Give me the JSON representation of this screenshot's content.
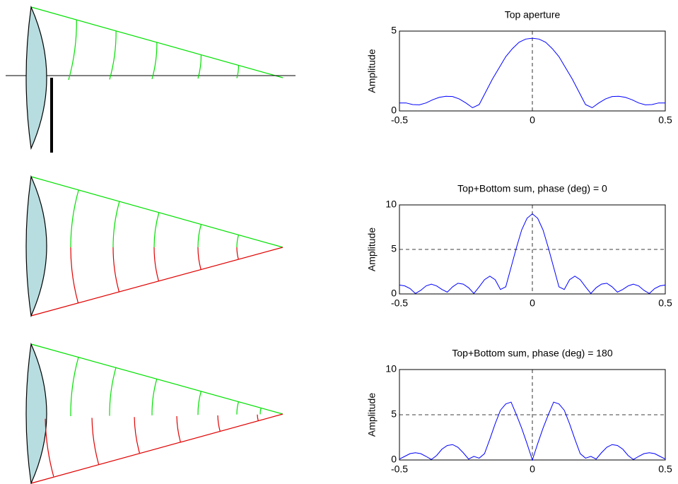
{
  "chart_data": [
    {
      "type": "line",
      "title": "Top aperture",
      "ylabel": "Amplitude",
      "color": "#0000ff",
      "x": [
        -0.5,
        -0.475,
        -0.45,
        -0.425,
        -0.4,
        -0.375,
        -0.35,
        -0.325,
        -0.3,
        -0.275,
        -0.25,
        -0.225,
        -0.2,
        -0.175,
        -0.15,
        -0.125,
        -0.1,
        -0.075,
        -0.05,
        -0.025,
        0,
        0.025,
        0.05,
        0.075,
        0.1,
        0.125,
        0.15,
        0.175,
        0.2,
        0.225,
        0.25,
        0.275,
        0.3,
        0.325,
        0.35,
        0.375,
        0.4,
        0.425,
        0.45,
        0.475,
        0.5
      ],
      "values": [
        0.5,
        0.5,
        0.4,
        0.38,
        0.5,
        0.7,
        0.85,
        0.92,
        0.9,
        0.75,
        0.5,
        0.2,
        0.4,
        1.2,
        2.0,
        2.7,
        3.4,
        3.9,
        4.3,
        4.5,
        4.55,
        4.5,
        4.3,
        3.9,
        3.4,
        2.7,
        2.0,
        1.2,
        0.4,
        0.2,
        0.5,
        0.75,
        0.9,
        0.92,
        0.85,
        0.7,
        0.5,
        0.38,
        0.4,
        0.5,
        0.5
      ],
      "xlim": [
        -0.5,
        0.5
      ],
      "xticks": [
        -0.5,
        0,
        0.5
      ],
      "ylim": [
        0,
        5
      ],
      "yticks": [
        0,
        5
      ],
      "grid": "dashed"
    },
    {
      "type": "line",
      "title": "Top+Bottom sum, phase (deg) = 0",
      "ylabel": "Amplitude",
      "color": "#0000ff",
      "x": [
        -0.5,
        -0.48,
        -0.46,
        -0.44,
        -0.42,
        -0.4,
        -0.38,
        -0.36,
        -0.34,
        -0.32,
        -0.3,
        -0.28,
        -0.26,
        -0.24,
        -0.22,
        -0.2,
        -0.18,
        -0.16,
        -0.14,
        -0.12,
        -0.1,
        -0.08,
        -0.06,
        -0.04,
        -0.02,
        0,
        0.02,
        0.04,
        0.06,
        0.08,
        0.1,
        0.12,
        0.14,
        0.16,
        0.18,
        0.2,
        0.22,
        0.24,
        0.26,
        0.28,
        0.3,
        0.32,
        0.34,
        0.36,
        0.38,
        0.4,
        0.42,
        0.44,
        0.46,
        0.48,
        0.5
      ],
      "values": [
        1.0,
        0.9,
        0.6,
        0.05,
        0.4,
        0.9,
        1.1,
        0.9,
        0.5,
        0.2,
        0.8,
        1.2,
        1.1,
        0.7,
        0.05,
        0.8,
        1.6,
        2.0,
        1.6,
        0.5,
        0.8,
        3.0,
        5.2,
        7.2,
        8.5,
        9,
        8.5,
        7.2,
        5.2,
        3.0,
        0.8,
        0.5,
        1.6,
        2.0,
        1.6,
        0.8,
        0.05,
        0.7,
        1.1,
        1.2,
        0.8,
        0.2,
        0.5,
        0.9,
        1.1,
        0.9,
        0.4,
        0.05,
        0.6,
        0.9,
        1.0
      ],
      "xlim": [
        -0.5,
        0.5
      ],
      "xticks": [
        -0.5,
        0,
        0.5
      ],
      "ylim": [
        0,
        10
      ],
      "yticks": [
        0,
        5,
        10
      ],
      "grid": "dashed"
    },
    {
      "type": "line",
      "title": "Top+Bottom sum, phase (deg) = 180",
      "ylabel": "Amplitude",
      "color": "#0000ff",
      "x": [
        -0.5,
        -0.48,
        -0.46,
        -0.44,
        -0.42,
        -0.4,
        -0.38,
        -0.36,
        -0.34,
        -0.32,
        -0.3,
        -0.28,
        -0.26,
        -0.24,
        -0.22,
        -0.2,
        -0.18,
        -0.16,
        -0.14,
        -0.12,
        -0.1,
        -0.08,
        -0.06,
        -0.04,
        -0.02,
        0,
        0.02,
        0.04,
        0.06,
        0.08,
        0.1,
        0.12,
        0.14,
        0.16,
        0.18,
        0.2,
        0.22,
        0.24,
        0.26,
        0.28,
        0.3,
        0.32,
        0.34,
        0.36,
        0.38,
        0.4,
        0.42,
        0.44,
        0.46,
        0.48,
        0.5
      ],
      "values": [
        0.1,
        0.4,
        0.7,
        0.8,
        0.7,
        0.4,
        0.05,
        0.5,
        1.2,
        1.6,
        1.7,
        1.4,
        0.8,
        0.1,
        0.4,
        0.2,
        0.7,
        2.3,
        4.0,
        5.5,
        6.2,
        6.4,
        5.0,
        3.5,
        1.8,
        0,
        1.8,
        3.5,
        5.0,
        6.4,
        6.2,
        5.5,
        4.0,
        2.3,
        0.7,
        0.2,
        0.4,
        0.1,
        0.8,
        1.4,
        1.7,
        1.6,
        1.2,
        0.5,
        0.05,
        0.4,
        0.7,
        0.8,
        0.7,
        0.4,
        0.1
      ],
      "xlim": [
        -0.5,
        0.5
      ],
      "xticks": [
        -0.5,
        0,
        0.5
      ],
      "ylim": [
        0,
        10
      ],
      "yticks": [
        0,
        5,
        10
      ],
      "grid": "dashed"
    }
  ]
}
